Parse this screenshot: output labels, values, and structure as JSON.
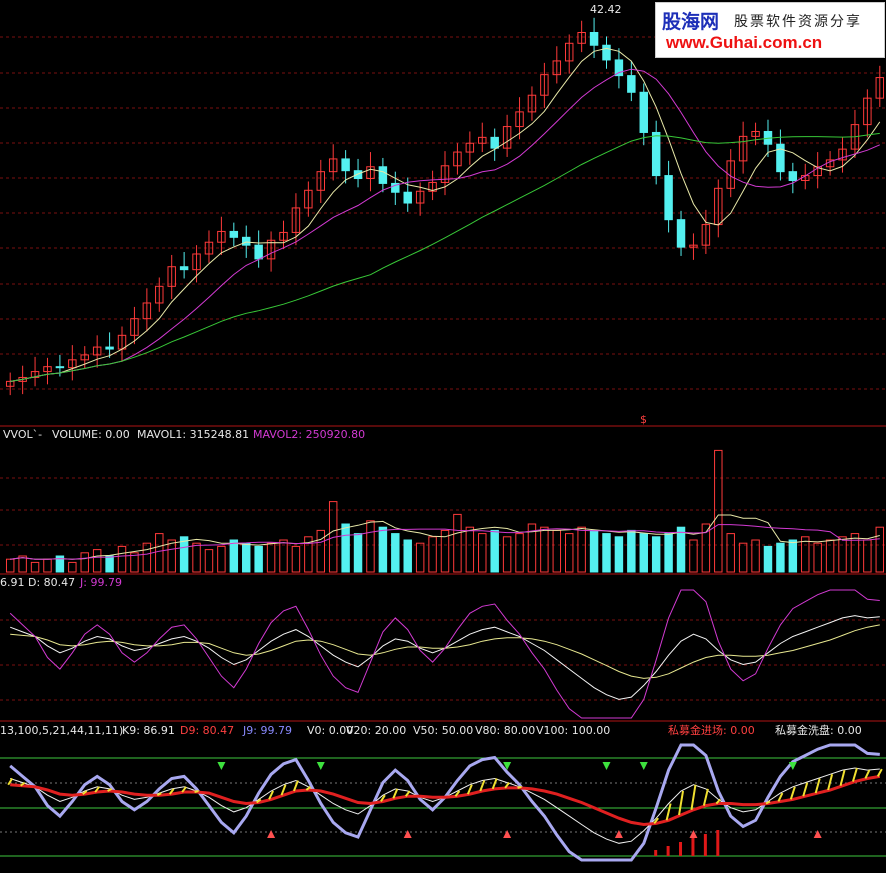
{
  "price_panel": {
    "high_label": "42.42",
    "marker_label": "$"
  },
  "volume_panel": {
    "label_name": "VVOL`-",
    "label_volume": "VOLUME: 0.00",
    "label_mavol1": "MAVOL1: 315248.81",
    "label_mavol2": "MAVOL2: 250920.80"
  },
  "kdj_panel": {
    "label_k": "6.91",
    "label_d": "D: 80.47",
    "label_j": "J: 99.79"
  },
  "indicator_panel": {
    "params": "13,100,5,21,44,11,11)",
    "k9": "K9: 86.91",
    "d9": "D9: 80.47",
    "j9": "J9: 99.79",
    "v0": "V0: 0.00",
    "v20": "V20: 20.00",
    "v50": "V50: 50.00",
    "v80": "V80: 80.00",
    "v100": "V100: 100.00",
    "enter": "私募金进场: 0.00",
    "wash": "私募金洗盘: 0.00"
  },
  "watermark": {
    "brand": "股海网",
    "tagline": "股票软件资源分享",
    "url": "www.Guhai.com.cn"
  },
  "colors": {
    "up": "#ff3a3a",
    "down": "#54f0f0",
    "ma_white": "#e8e8a8",
    "ma_purple": "#d23ad2",
    "ma_green": "#38c838",
    "grid": "#7a1010"
  },
  "chart_data": {
    "type": "candlestick",
    "price_series": [
      {
        "name": "close",
        "values": [
          5.9,
          6.3,
          6.9,
          7.4,
          7.3,
          8.1,
          8.6,
          9.4,
          9.2,
          10.6,
          12.3,
          13.9,
          15.6,
          17.6,
          17.3,
          18.9,
          20.1,
          21.2,
          20.6,
          19.8,
          18.4,
          20.3,
          21.1,
          23.6,
          25.4,
          27.3,
          28.6,
          27.4,
          26.6,
          27.8,
          26.1,
          25.2,
          24.1,
          25.3,
          26.2,
          27.9,
          29.3,
          30.2,
          30.8,
          29.7,
          31.9,
          33.4,
          35.1,
          37.2,
          38.6,
          40.4,
          41.5,
          40.2,
          38.7,
          37.1,
          35.4,
          31.3,
          26.9,
          22.4,
          19.6,
          19.8,
          21.9,
          25.6,
          28.4,
          30.9,
          31.4,
          30.1,
          27.3,
          26.4,
          26.9,
          27.8,
          28.5,
          29.6,
          32.1,
          34.8,
          36.9
        ]
      }
    ],
    "volume_values": [
      4,
      5,
      3,
      4,
      5,
      3,
      6,
      7,
      5,
      8,
      6,
      9,
      12,
      10,
      11,
      9,
      7,
      8,
      10,
      9,
      8,
      9,
      10,
      8,
      11,
      13,
      22,
      15,
      12,
      16,
      14,
      12,
      10,
      9,
      11,
      13,
      18,
      14,
      12,
      13,
      11,
      12,
      15,
      14,
      13,
      12,
      14,
      13,
      12,
      11,
      13,
      12,
      11,
      12,
      14,
      10,
      15,
      38,
      12,
      9,
      10,
      8,
      9,
      10,
      11,
      9,
      10,
      11,
      12,
      10,
      14
    ],
    "kdj": {
      "k": [
        78,
        74,
        70,
        62,
        56,
        60,
        66,
        70,
        68,
        62,
        58,
        60,
        64,
        68,
        70,
        66,
        60,
        52,
        46,
        50,
        58,
        66,
        72,
        76,
        70,
        62,
        54,
        48,
        44,
        52,
        62,
        68,
        66,
        60,
        56,
        60,
        66,
        72,
        76,
        78,
        74,
        70,
        64,
        58,
        50,
        42,
        34,
        26,
        20,
        16,
        18,
        28,
        40,
        54,
        66,
        72,
        68,
        58,
        50,
        46,
        48,
        56,
        64,
        70,
        74,
        78,
        82,
        86,
        88,
        86,
        87
      ],
      "d": [
        72,
        71,
        70,
        67,
        63,
        62,
        63,
        65,
        66,
        65,
        63,
        62,
        62,
        63,
        65,
        65,
        64,
        60,
        56,
        54,
        55,
        58,
        62,
        66,
        67,
        66,
        63,
        59,
        55,
        54,
        56,
        59,
        61,
        61,
        60,
        60,
        61,
        63,
        66,
        68,
        69,
        69,
        68,
        66,
        63,
        59,
        55,
        50,
        45,
        40,
        36,
        34,
        35,
        38,
        43,
        48,
        52,
        54,
        54,
        53,
        53,
        54,
        56,
        58,
        61,
        64,
        67,
        71,
        75,
        78,
        80
      ]
    }
  }
}
